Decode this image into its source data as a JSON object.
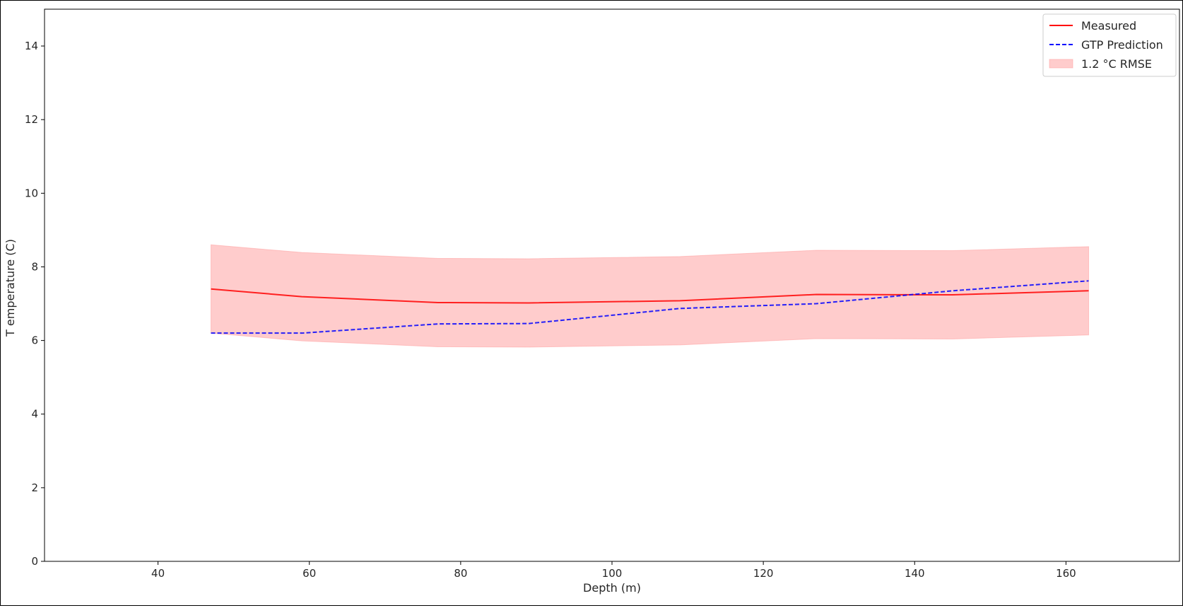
{
  "chart_data": {
    "type": "line",
    "title": "",
    "xlabel": "Depth (m)",
    "ylabel": "T emperature (C)",
    "xlim": [
      25,
      175
    ],
    "ylim": [
      0,
      15
    ],
    "xticks": [
      40,
      60,
      80,
      100,
      120,
      140,
      160
    ],
    "yticks": [
      0,
      2,
      4,
      6,
      8,
      10,
      12,
      14
    ],
    "grid": false,
    "legend_position": "top-right",
    "series": [
      {
        "name": "Measured",
        "style": "solid",
        "color": "#ff0000",
        "x": [
          47,
          59,
          77,
          89,
          109,
          127,
          145,
          163
        ],
        "y": [
          7.4,
          7.19,
          7.03,
          7.02,
          7.08,
          7.25,
          7.24,
          7.35
        ]
      },
      {
        "name": "GTP Prediction",
        "style": "dashed",
        "color": "#0000ff",
        "x": [
          47,
          59,
          77,
          89,
          109,
          127,
          145,
          163
        ],
        "y": [
          6.2,
          6.2,
          6.45,
          6.46,
          6.87,
          7.0,
          7.35,
          7.62
        ]
      }
    ],
    "band": {
      "name": "1.2 °C RMSE",
      "color": "#ff9999",
      "x": [
        47,
        59,
        77,
        89,
        109,
        127,
        145,
        163
      ],
      "upper": [
        8.6,
        8.39,
        8.23,
        8.22,
        8.28,
        8.45,
        8.44,
        8.55
      ],
      "lower": [
        6.2,
        5.99,
        5.83,
        5.82,
        5.88,
        6.05,
        6.04,
        6.15
      ]
    }
  }
}
